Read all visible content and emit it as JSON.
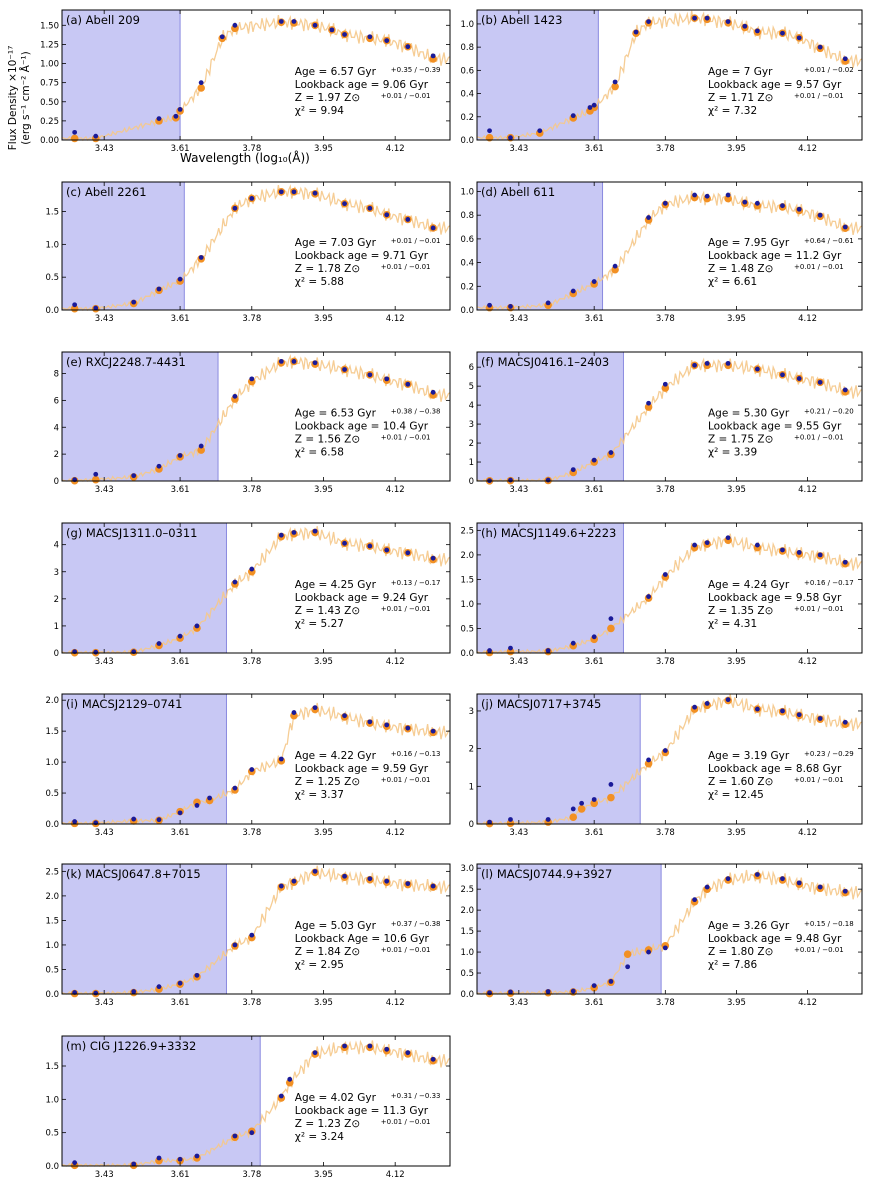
{
  "figure": {
    "ylabel_line1": "Flux Density ×10⁻¹⁷",
    "ylabel_line2": "(erg s⁻¹ cm⁻² Å⁻¹)",
    "xlabel": "Wavelength (log₁₀(Å))",
    "colors": {
      "model": "#f5c88a",
      "obs": "#1a1a99",
      "fit": "#f29023",
      "shade": "#c8c8f4",
      "shade_edge": "#8a8ae0"
    }
  },
  "chart_data": [
    {
      "type": "scatter",
      "title": "(a) Abell 209",
      "xlim": [
        3.33,
        4.25
      ],
      "ylim": [
        0,
        1.7
      ],
      "yticks": [
        "0.00",
        "0.25",
        "0.50",
        "0.75",
        "1.00",
        "1.25",
        "1.50"
      ],
      "ytick_values": [
        0,
        0.25,
        0.5,
        0.75,
        1,
        1.25,
        1.5
      ],
      "xticks": [
        "3.43",
        "3.61",
        "3.78",
        "3.95",
        "4.12"
      ],
      "shade_end": 3.61,
      "obs_x": [
        3.36,
        3.41,
        3.56,
        3.6,
        3.61,
        3.66,
        3.71,
        3.74,
        3.85,
        3.88,
        3.93,
        3.97,
        4.0,
        4.06,
        4.1,
        4.15,
        4.21
      ],
      "obs_y": [
        0.1,
        0.05,
        0.28,
        0.31,
        0.4,
        0.75,
        1.35,
        1.5,
        1.55,
        1.55,
        1.5,
        1.44,
        1.38,
        1.35,
        1.3,
        1.22,
        1.1
      ],
      "fit_y": [
        0.02,
        0.02,
        0.25,
        0.29,
        0.38,
        0.68,
        1.33,
        1.46,
        1.54,
        1.53,
        1.5,
        1.44,
        1.38,
        1.33,
        1.3,
        1.22,
        1.06
      ],
      "stats": {
        "age": "Age = 6.57 Gyr",
        "age_err": "+0.35 / −0.39",
        "lookback": "Lookback age = 9.06 Gyr",
        "z": "Z = 1.97 Z⊙",
        "z_err": "+0.01 / −0.01",
        "chi2": "χ² = 9.94"
      }
    },
    {
      "type": "scatter",
      "title": "(b) Abell 1423",
      "xlim": [
        3.33,
        4.25
      ],
      "ylim": [
        0,
        1.12
      ],
      "yticks": [
        "0.0",
        "0.2",
        "0.4",
        "0.6",
        "0.8",
        "1.0"
      ],
      "ytick_values": [
        0,
        0.2,
        0.4,
        0.6,
        0.8,
        1.0
      ],
      "xticks": [
        "3.43",
        "3.61",
        "3.78",
        "3.95",
        "4.12"
      ],
      "shade_end": 3.62,
      "obs_x": [
        3.36,
        3.41,
        3.48,
        3.56,
        3.6,
        3.61,
        3.66,
        3.71,
        3.74,
        3.85,
        3.88,
        3.93,
        3.97,
        4.0,
        4.06,
        4.1,
        4.15,
        4.21
      ],
      "obs_y": [
        0.08,
        0.02,
        0.08,
        0.21,
        0.28,
        0.3,
        0.5,
        0.93,
        1.02,
        1.05,
        1.05,
        1.02,
        0.98,
        0.94,
        0.92,
        0.88,
        0.8,
        0.7
      ],
      "fit_y": [
        0.02,
        0.02,
        0.06,
        0.19,
        0.25,
        0.28,
        0.46,
        0.92,
        1.01,
        1.05,
        1.04,
        1.01,
        0.97,
        0.93,
        0.92,
        0.88,
        0.79,
        0.68
      ],
      "stats": {
        "age": "Age = 7 Gyr",
        "age_err": "+0.01 / −0.02",
        "lookback": "Lookback age = 9.57 Gyr",
        "z": "Z = 1.71 Z⊙",
        "z_err": "+0.01 / −0.01",
        "chi2": "χ² = 7.32"
      }
    },
    {
      "type": "scatter",
      "title": "(c) Abell 2261",
      "xlim": [
        3.33,
        4.25
      ],
      "ylim": [
        0,
        1.95
      ],
      "yticks": [
        "0.0",
        "0.5",
        "1.0",
        "1.5"
      ],
      "ytick_values": [
        0,
        0.5,
        1.0,
        1.5
      ],
      "xticks": [
        "3.43",
        "3.61",
        "3.78",
        "3.95",
        "4.12"
      ],
      "shade_end": 3.62,
      "obs_x": [
        3.36,
        3.41,
        3.5,
        3.56,
        3.61,
        3.66,
        3.74,
        3.78,
        3.85,
        3.88,
        3.93,
        4.0,
        4.06,
        4.1,
        4.15,
        4.21
      ],
      "obs_y": [
        0.08,
        0.03,
        0.12,
        0.32,
        0.47,
        0.8,
        1.55,
        1.7,
        1.8,
        1.8,
        1.78,
        1.62,
        1.55,
        1.45,
        1.38,
        1.25
      ],
      "fit_y": [
        0.02,
        0.02,
        0.1,
        0.3,
        0.44,
        0.78,
        1.55,
        1.7,
        1.8,
        1.8,
        1.77,
        1.62,
        1.55,
        1.45,
        1.38,
        1.25
      ],
      "stats": {
        "age": "Age = 7.03 Gyr",
        "age_err": "+0.01 / −0.01",
        "lookback": "Lookback age = 9.71 Gyr",
        "z": "Z = 1.78 Z⊙",
        "z_err": "+0.01 / −0.01",
        "chi2": "χ² = 5.88"
      }
    },
    {
      "type": "scatter",
      "title": "(d) Abell 611",
      "xlim": [
        3.33,
        4.25
      ],
      "ylim": [
        0,
        1.08
      ],
      "yticks": [
        "0.0",
        "0.2",
        "0.4",
        "0.6",
        "0.8",
        "1.0"
      ],
      "ytick_values": [
        0,
        0.2,
        0.4,
        0.6,
        0.8,
        1.0
      ],
      "xticks": [
        "3.43",
        "3.61",
        "3.78",
        "3.95",
        "4.12"
      ],
      "shade_end": 3.63,
      "obs_x": [
        3.36,
        3.41,
        3.5,
        3.56,
        3.61,
        3.66,
        3.74,
        3.78,
        3.85,
        3.88,
        3.93,
        3.97,
        4.0,
        4.06,
        4.1,
        4.15,
        4.21
      ],
      "obs_y": [
        0.04,
        0.03,
        0.06,
        0.16,
        0.24,
        0.37,
        0.78,
        0.9,
        0.97,
        0.96,
        0.97,
        0.91,
        0.9,
        0.88,
        0.85,
        0.8,
        0.7
      ],
      "fit_y": [
        0.02,
        0.02,
        0.04,
        0.14,
        0.22,
        0.34,
        0.76,
        0.89,
        0.95,
        0.94,
        0.94,
        0.9,
        0.88,
        0.87,
        0.84,
        0.79,
        0.69
      ],
      "stats": {
        "age": "Age = 7.95 Gyr",
        "age_err": "+0.64 / −0.61",
        "lookback": "Lookback age = 11.2 Gyr",
        "z": "Z = 1.48 Z⊙",
        "z_err": "+0.01 / −0.01",
        "chi2": "χ² = 6.61"
      }
    },
    {
      "type": "scatter",
      "title": "(e) RXCJ2248.7-4431",
      "xlim": [
        3.33,
        4.25
      ],
      "ylim": [
        0,
        9.6
      ],
      "yticks": [
        "0",
        "2",
        "4",
        "6",
        "8"
      ],
      "ytick_values": [
        0,
        2,
        4,
        6,
        8
      ],
      "xticks": [
        "3.43",
        "3.61",
        "3.78",
        "3.95",
        "4.12"
      ],
      "shade_end": 3.7,
      "obs_x": [
        3.36,
        3.41,
        3.5,
        3.56,
        3.61,
        3.66,
        3.74,
        3.78,
        3.85,
        3.88,
        3.93,
        4.0,
        4.06,
        4.1,
        4.15,
        4.21
      ],
      "obs_y": [
        0.1,
        0.5,
        0.4,
        1.1,
        1.9,
        2.6,
        6.3,
        7.6,
        8.9,
        8.9,
        8.8,
        8.3,
        7.9,
        7.6,
        7.2,
        6.6
      ],
      "fit_y": [
        0.02,
        0.1,
        0.3,
        0.9,
        1.8,
        2.3,
        6.1,
        7.4,
        8.8,
        8.9,
        8.7,
        8.3,
        7.9,
        7.5,
        7.2,
        6.4
      ],
      "stats": {
        "age": "Age = 6.53 Gyr",
        "age_err": "+0.38 / −0.38",
        "lookback": "Lookback age = 10.4  Gyr",
        "z": "Z = 1.56 Z⊙",
        "z_err": "+0.01 / −0.01",
        "chi2": "χ² = 6.58"
      }
    },
    {
      "type": "scatter",
      "title": "(f) MACSJ0416.1–2403",
      "xlim": [
        3.33,
        4.25
      ],
      "ylim": [
        0,
        6.8
      ],
      "yticks": [
        "0",
        "1",
        "2",
        "3",
        "4",
        "5",
        "6"
      ],
      "ytick_values": [
        0,
        1,
        2,
        3,
        4,
        5,
        6
      ],
      "xticks": [
        "3.43",
        "3.61",
        "3.78",
        "3.95",
        "4.12"
      ],
      "shade_end": 3.68,
      "obs_x": [
        3.36,
        3.41,
        3.5,
        3.56,
        3.61,
        3.65,
        3.74,
        3.78,
        3.85,
        3.88,
        3.93,
        4.0,
        4.06,
        4.1,
        4.15,
        4.21
      ],
      "obs_y": [
        0.02,
        0.05,
        0.05,
        0.6,
        1.1,
        1.5,
        4.1,
        5.1,
        6.1,
        6.2,
        6.2,
        5.9,
        5.6,
        5.4,
        5.2,
        4.8
      ],
      "fit_y": [
        0.01,
        0.02,
        0.03,
        0.45,
        1.0,
        1.4,
        3.9,
        4.9,
        6.1,
        6.1,
        6.1,
        5.9,
        5.6,
        5.4,
        5.2,
        4.7
      ],
      "stats": {
        "age": "Age = 5.30 Gyr",
        "age_err": "+0.21 / −0.20",
        "lookback": "Lookback age = 9.55  Gyr",
        "z": "Z = 1.75 Z⊙",
        "z_err": "+0.01 / −0.01",
        "chi2": "χ² = 3.39"
      }
    },
    {
      "type": "scatter",
      "title": "(g) MACSJ1311.0–0311",
      "xlim": [
        3.33,
        4.25
      ],
      "ylim": [
        0,
        4.8
      ],
      "yticks": [
        "0",
        "1",
        "2",
        "3",
        "4"
      ],
      "ytick_values": [
        0,
        1,
        2,
        3,
        4
      ],
      "xticks": [
        "3.43",
        "3.61",
        "3.78",
        "3.95",
        "4.12"
      ],
      "shade_end": 3.72,
      "obs_x": [
        3.36,
        3.41,
        3.5,
        3.56,
        3.61,
        3.65,
        3.74,
        3.78,
        3.85,
        3.88,
        3.93,
        4.0,
        4.06,
        4.1,
        4.15,
        4.21
      ],
      "obs_y": [
        0.05,
        0.03,
        0.05,
        0.35,
        0.62,
        1.0,
        2.62,
        3.1,
        4.35,
        4.45,
        4.5,
        4.05,
        3.95,
        3.8,
        3.7,
        3.5
      ],
      "fit_y": [
        0.01,
        0.01,
        0.03,
        0.28,
        0.55,
        0.92,
        2.55,
        3.0,
        4.3,
        4.4,
        4.45,
        4.05,
        3.95,
        3.8,
        3.7,
        3.45
      ],
      "stats": {
        "age": "Age = 4.25 Gyr",
        "age_err": "+0.13 / −0.17",
        "lookback": "Lookback age = 9.24 Gyr",
        "z": "Z = 1.43 Z⊙",
        "z_err": "+0.01 / −0.01",
        "chi2": "χ² = 5.27"
      }
    },
    {
      "type": "scatter",
      "title": "(h) MACSJ1149.6+2223",
      "xlim": [
        3.33,
        4.25
      ],
      "ylim": [
        0,
        2.65
      ],
      "yticks": [
        "0.0",
        "0.5",
        "1.0",
        "1.5",
        "2.0",
        "2.5"
      ],
      "ytick_values": [
        0,
        0.5,
        1.0,
        1.5,
        2.0,
        2.5
      ],
      "xticks": [
        "3.43",
        "3.61",
        "3.78",
        "3.95",
        "4.12"
      ],
      "shade_end": 3.68,
      "obs_x": [
        3.36,
        3.41,
        3.5,
        3.56,
        3.61,
        3.65,
        3.74,
        3.78,
        3.85,
        3.88,
        3.93,
        4.0,
        4.06,
        4.1,
        4.15,
        4.21
      ],
      "obs_y": [
        0.05,
        0.1,
        0.05,
        0.2,
        0.33,
        0.7,
        1.15,
        1.6,
        2.2,
        2.25,
        2.35,
        2.2,
        2.1,
        2.05,
        2.0,
        1.85
      ],
      "fit_y": [
        0.01,
        0.03,
        0.03,
        0.15,
        0.28,
        0.5,
        1.12,
        1.55,
        2.15,
        2.22,
        2.3,
        2.15,
        2.08,
        2.02,
        1.98,
        1.82
      ],
      "stats": {
        "age": "Age = 4.24 Gyr",
        "age_err": "+0.16 / −0.17",
        "lookback": "Lookback age = 9.58 Gyr",
        "z": "Z = 1.35 Z⊙",
        "z_err": "+0.01 / −0.01",
        "chi2": "χ² = 4.31"
      }
    },
    {
      "type": "scatter",
      "title": "(i) MACSJ2129–0741",
      "xlim": [
        3.33,
        4.25
      ],
      "ylim": [
        0,
        2.1
      ],
      "yticks": [
        "0.0",
        "0.5",
        "1.0",
        "1.5",
        "2.0"
      ],
      "ytick_values": [
        0,
        0.5,
        1.0,
        1.5,
        2.0
      ],
      "xticks": [
        "3.43",
        "3.61",
        "3.78",
        "3.95",
        "4.12"
      ],
      "shade_end": 3.72,
      "obs_x": [
        3.36,
        3.41,
        3.5,
        3.56,
        3.61,
        3.65,
        3.68,
        3.74,
        3.78,
        3.85,
        3.88,
        3.93,
        4.0,
        4.06,
        4.1,
        4.15,
        4.21
      ],
      "obs_y": [
        0.04,
        0.02,
        0.08,
        0.07,
        0.18,
        0.3,
        0.42,
        0.58,
        0.88,
        1.05,
        1.8,
        1.88,
        1.75,
        1.65,
        1.6,
        1.55,
        1.5
      ],
      "fit_y": [
        0.01,
        0.01,
        0.05,
        0.06,
        0.2,
        0.35,
        0.38,
        0.55,
        0.85,
        1.02,
        1.75,
        1.85,
        1.73,
        1.63,
        1.58,
        1.54,
        1.48
      ],
      "stats": {
        "age": "Age = 4.22 Gyr",
        "age_err": "+0.16 / −0.13",
        "lookback": "Lookback age = 9.59 Gyr",
        "z": "Z = 1.25 Z⊙",
        "z_err": "+0.01 / −0.01",
        "chi2": "χ² = 3.37"
      }
    },
    {
      "type": "scatter",
      "title": "(j) MACSJ0717+3745",
      "xlim": [
        3.33,
        4.25
      ],
      "ylim": [
        0,
        3.45
      ],
      "yticks": [
        "0",
        "1",
        "2",
        "3"
      ],
      "ytick_values": [
        0,
        1,
        2,
        3
      ],
      "xticks": [
        "3.43",
        "3.61",
        "3.78",
        "3.95",
        "4.12"
      ],
      "shade_end": 3.72,
      "obs_x": [
        3.36,
        3.41,
        3.5,
        3.56,
        3.58,
        3.61,
        3.65,
        3.74,
        3.78,
        3.85,
        3.88,
        3.93,
        4.0,
        4.06,
        4.1,
        4.15,
        4.21
      ],
      "obs_y": [
        0.05,
        0.12,
        0.12,
        0.4,
        0.55,
        0.65,
        1.05,
        1.7,
        1.95,
        3.1,
        3.2,
        3.3,
        3.05,
        3.0,
        2.9,
        2.8,
        2.7
      ],
      "fit_y": [
        0.01,
        0.02,
        0.05,
        0.18,
        0.4,
        0.55,
        0.7,
        1.6,
        1.9,
        3.05,
        3.15,
        3.28,
        3.05,
        2.98,
        2.88,
        2.78,
        2.65
      ],
      "stats": {
        "age": "Age = 3.19 Gyr",
        "age_err": "+0.23 / −0.29",
        "lookback": "Lookback age = 8.68 Gyr",
        "z": "Z = 1.60 Z⊙",
        "z_err": "+0.01 / −0.01",
        "chi2": "χ² = 12.45"
      }
    },
    {
      "type": "scatter",
      "title": "(k) MACSJ0647.8+7015",
      "xlim": [
        3.33,
        4.25
      ],
      "ylim": [
        0,
        2.65
      ],
      "yticks": [
        "0.0",
        "0.5",
        "1.0",
        "1.5",
        "2.0",
        "2.5"
      ],
      "ytick_values": [
        0,
        0.5,
        1.0,
        1.5,
        2.0,
        2.5
      ],
      "xticks": [
        "3.43",
        "3.61",
        "3.78",
        "3.95",
        "4.12"
      ],
      "shade_end": 3.72,
      "obs_x": [
        3.36,
        3.41,
        3.5,
        3.56,
        3.61,
        3.65,
        3.74,
        3.78,
        3.85,
        3.88,
        3.93,
        4.0,
        4.06,
        4.1,
        4.15,
        4.21
      ],
      "obs_y": [
        0.03,
        0.02,
        0.05,
        0.15,
        0.22,
        0.38,
        1.0,
        1.2,
        2.2,
        2.3,
        2.5,
        2.4,
        2.35,
        2.3,
        2.25,
        2.2
      ],
      "fit_y": [
        0.01,
        0.01,
        0.03,
        0.1,
        0.2,
        0.35,
        0.98,
        1.15,
        2.18,
        2.28,
        2.48,
        2.38,
        2.33,
        2.28,
        2.23,
        2.18
      ],
      "stats": {
        "age": "Age = 5.03 Gyr",
        "age_err": "+0.37 / −0.38",
        "lookback": "Lookback Age = 10.6 Gyr",
        "z": "Z = 1.84 Z⊙",
        "z_err": "+0.01 / −0.01",
        "chi2": "χ² = 2.95"
      }
    },
    {
      "type": "scatter",
      "title": "(l) MACSJ0744.9+3927",
      "xlim": [
        3.33,
        4.25
      ],
      "ylim": [
        0,
        3.1
      ],
      "yticks": [
        "0.0",
        "0.5",
        "1.0",
        "1.5",
        "2.0",
        "2.5",
        "3.0"
      ],
      "ytick_values": [
        0,
        0.5,
        1.0,
        1.5,
        2.0,
        2.5,
        3.0
      ],
      "xticks": [
        "3.43",
        "3.61",
        "3.78",
        "3.95",
        "4.12"
      ],
      "shade_end": 3.77,
      "obs_x": [
        3.36,
        3.41,
        3.5,
        3.56,
        3.61,
        3.65,
        3.69,
        3.74,
        3.78,
        3.85,
        3.88,
        3.93,
        4.0,
        4.06,
        4.1,
        4.15,
        4.21
      ],
      "obs_y": [
        0.03,
        0.05,
        0.06,
        0.07,
        0.2,
        0.3,
        0.65,
        1.0,
        1.1,
        2.25,
        2.55,
        2.75,
        2.85,
        2.75,
        2.65,
        2.55,
        2.45
      ],
      "fit_y": [
        0.01,
        0.02,
        0.03,
        0.05,
        0.15,
        0.28,
        0.95,
        1.05,
        1.15,
        2.2,
        2.5,
        2.72,
        2.82,
        2.72,
        2.62,
        2.52,
        2.42
      ],
      "stats": {
        "age": "Age = 3.26 Gyr",
        "age_err": "+0.15 / −0.18",
        "lookback": "Lookback age = 9.48 Gyr",
        "z": "Z = 1.80 Z⊙",
        "z_err": "+0.01 / −0.01",
        "chi2": "χ² = 7.86"
      }
    },
    {
      "type": "scatter",
      "title": "(m) CIG J1226.9+3332",
      "xlim": [
        3.33,
        4.25
      ],
      "ylim": [
        0,
        1.95
      ],
      "yticks": [
        "0.0",
        "0.5",
        "1.0",
        "1.5"
      ],
      "ytick_values": [
        0,
        0.5,
        1.0,
        1.5
      ],
      "xticks": [
        "3.43",
        "3.61",
        "3.78",
        "3.95",
        "4.12"
      ],
      "shade_end": 3.8,
      "obs_x": [
        3.36,
        3.5,
        3.56,
        3.61,
        3.65,
        3.74,
        3.78,
        3.85,
        3.87,
        3.93,
        4.0,
        4.06,
        4.1,
        4.15,
        4.21
      ],
      "obs_y": [
        0.05,
        0.03,
        0.12,
        0.1,
        0.15,
        0.45,
        0.5,
        1.05,
        1.3,
        1.7,
        1.8,
        1.8,
        1.75,
        1.7,
        1.6
      ],
      "fit_y": [
        0.01,
        0.01,
        0.08,
        0.08,
        0.12,
        0.43,
        0.52,
        1.02,
        1.25,
        1.68,
        1.78,
        1.78,
        1.73,
        1.68,
        1.58
      ],
      "stats": {
        "age": "Age = 4.02 Gyr",
        "age_err": "+0.31 / −0.33",
        "lookback": "Lookback age = 11.3 Gyr",
        "z": "Z = 1.23 Z⊙",
        "z_err": "+0.01 / −0.01",
        "chi2": "χ² = 3.24"
      }
    }
  ]
}
